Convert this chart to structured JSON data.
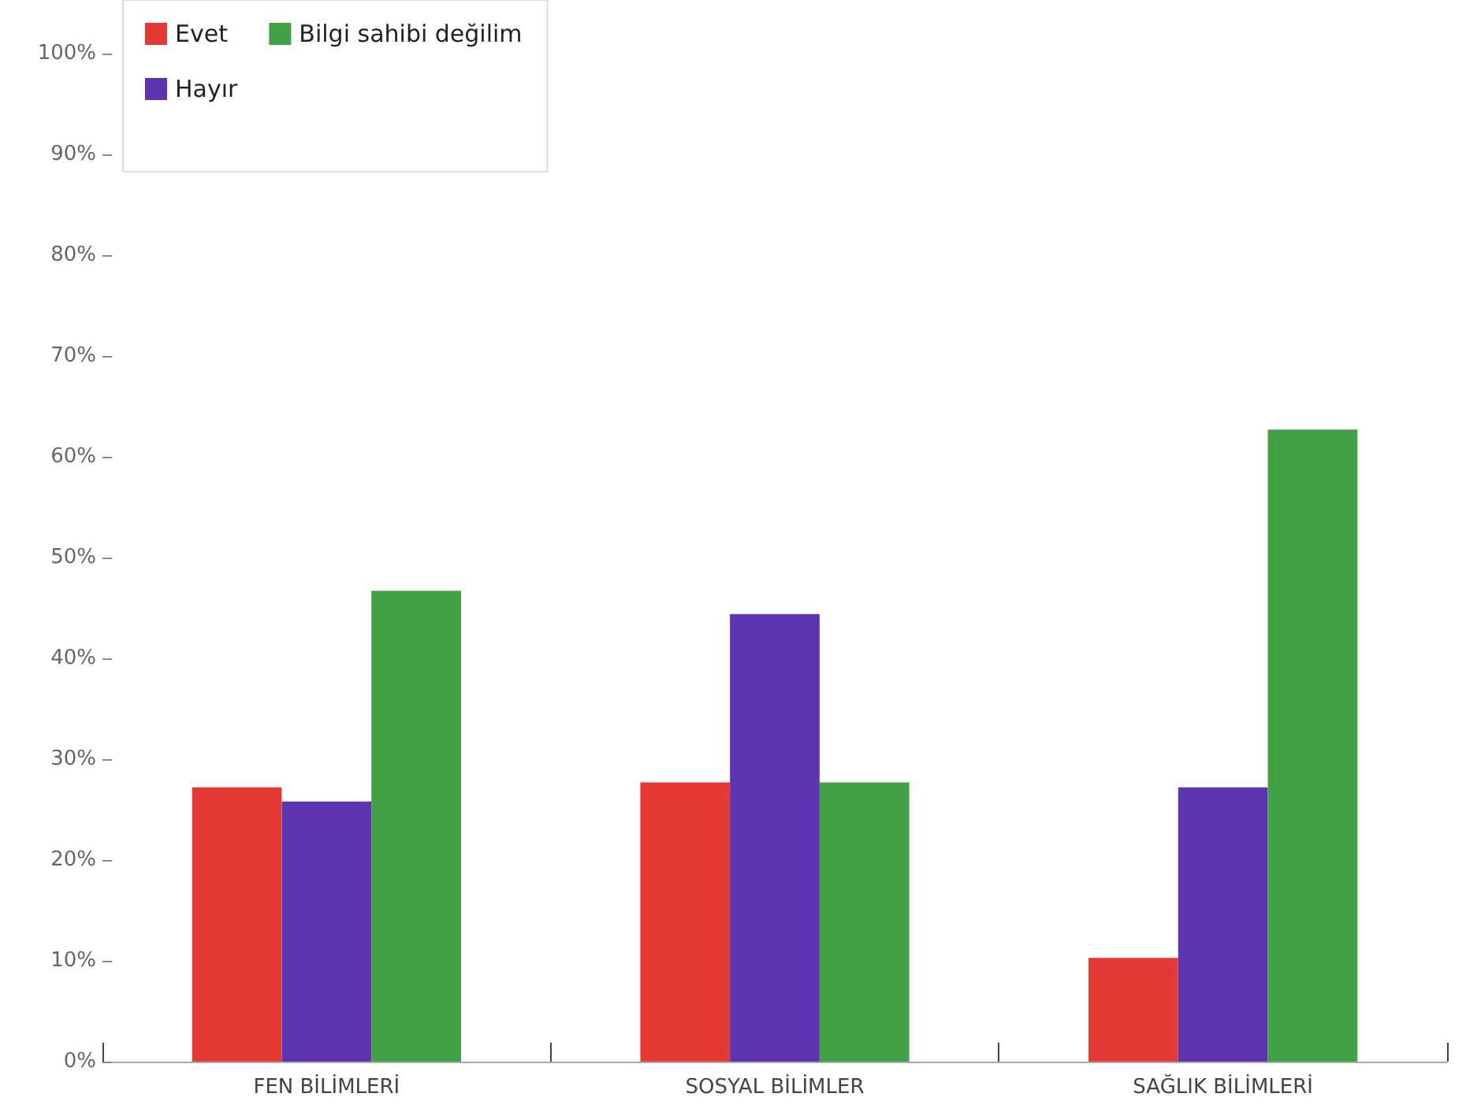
{
  "chart_data": {
    "type": "bar",
    "categories": [
      "FEN BİLİMLERİ",
      "SOSYAL BİLİMLER",
      "SAĞLIK BİLİMLERİ"
    ],
    "series": [
      {
        "name": "Evet",
        "color": "#e53935",
        "values": [
          27.2,
          27.7,
          10.3
        ]
      },
      {
        "name": "Hayır",
        "color": "#5e35b1",
        "values": [
          25.8,
          44.4,
          27.2
        ]
      },
      {
        "name": "Bilgi sahibi değilim",
        "color": "#43a047",
        "values": [
          46.7,
          27.7,
          62.7
        ]
      }
    ],
    "ylim": [
      0,
      100
    ],
    "yticks": [
      {
        "value": 0,
        "label": "0%"
      },
      {
        "value": 10,
        "label": "10%"
      },
      {
        "value": 20,
        "label": "20%"
      },
      {
        "value": 30,
        "label": "30%"
      },
      {
        "value": 40,
        "label": "40%"
      },
      {
        "value": 50,
        "label": "50%"
      },
      {
        "value": 60,
        "label": "60%"
      },
      {
        "value": 70,
        "label": "70%"
      },
      {
        "value": 80,
        "label": "80%"
      },
      {
        "value": 90,
        "label": "90%"
      },
      {
        "value": 100,
        "label": "100%"
      }
    ],
    "grid": false,
    "legend": "top left"
  }
}
